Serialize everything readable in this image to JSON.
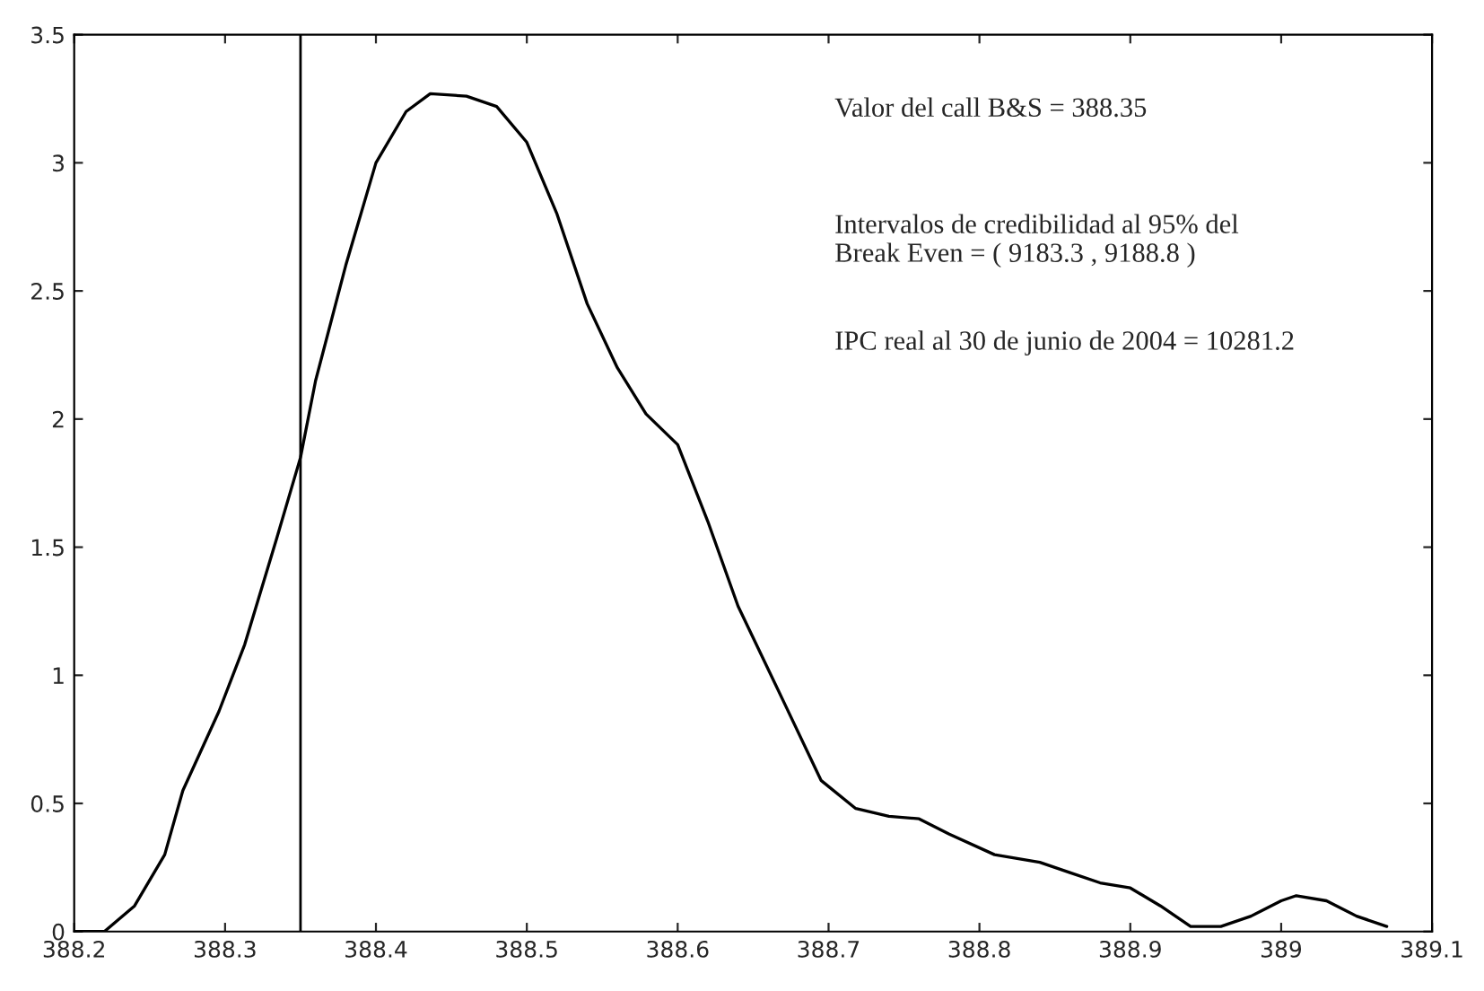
{
  "chart_data": {
    "type": "line",
    "x": [
      388.2,
      388.22,
      388.24,
      388.26,
      388.272,
      388.296,
      388.313,
      388.334,
      388.35,
      388.36,
      388.38,
      388.4,
      388.42,
      388.436,
      388.46,
      388.48,
      388.5,
      388.52,
      388.54,
      388.56,
      388.579,
      388.6,
      388.62,
      388.64,
      388.67,
      388.695,
      388.718,
      388.74,
      388.76,
      388.78,
      388.81,
      388.84,
      388.86,
      388.88,
      388.9,
      388.92,
      388.94,
      388.96,
      388.98,
      389.0,
      389.01,
      389.03,
      389.05,
      389.07
    ],
    "series": [
      {
        "color": "#000000",
        "values": [
          0,
          0,
          0.1,
          0.3,
          0.55,
          0.86,
          1.12,
          1.53,
          1.85,
          2.15,
          2.6,
          3.0,
          3.2,
          3.27,
          3.26,
          3.22,
          3.08,
          2.8,
          2.45,
          2.2,
          2.02,
          1.9,
          1.6,
          1.27,
          0.9,
          0.59,
          0.48,
          0.45,
          0.44,
          0.38,
          0.3,
          0.27,
          0.23,
          0.19,
          0.17,
          0.1,
          0.02,
          0.02,
          0.06,
          0.12,
          0.14,
          0.12,
          0.06,
          0.02
        ]
      }
    ],
    "xlim": [
      388.2,
      389.1
    ],
    "xticks": [
      388.2,
      388.3,
      388.4,
      388.5,
      388.6,
      388.7,
      388.8,
      388.9,
      389,
      389.1
    ],
    "ylim": [
      0,
      3.5
    ],
    "yticks": [
      0,
      0.5,
      1,
      1.5,
      2,
      2.5,
      3,
      3.5
    ],
    "ref_lines": [
      {
        "axis": "x",
        "value": 388.35,
        "color": "#000000"
      }
    ],
    "annotations": [
      "Valor del call B&S = 388.35",
      "Intervalos de credibilidad al 95% del\nBreak Even = ( 9183.3 , 9188.8 )",
      "IPC real al 30 de junio de 2004 = 10281.2"
    ],
    "grid": false,
    "line_style": "solid",
    "marker": "none"
  }
}
